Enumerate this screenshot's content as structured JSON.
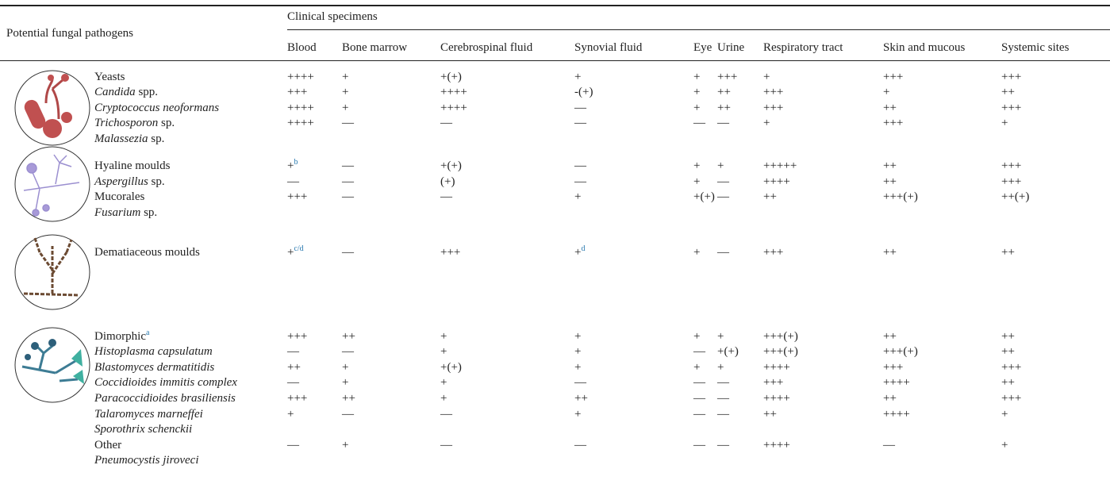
{
  "header": {
    "row_label": "Potential fungal pathogens",
    "span_label": "Clinical specimens"
  },
  "table": {
    "columns": [
      "Blood",
      "Bone marrow",
      "Cerebrospinal fluid",
      "Synovial fluid",
      "Eye",
      "Urine",
      "Respiratory tract",
      "Skin and mucous",
      "Systemic sites"
    ],
    "groups": [
      {
        "rows": [
          {
            "name": "Yeasts",
            "values": [
              "++++",
              "+",
              "+(+)",
              "+",
              "+",
              "+++",
              "+",
              "+++",
              "+++"
            ]
          },
          {
            "name": "Candida",
            "suffix": "spp.",
            "italic": true,
            "values": [
              "+++",
              "+",
              "++++",
              "-(+)",
              "+",
              "++",
              "+++",
              "+",
              "++"
            ]
          },
          {
            "name": "Cryptococcus neoformans",
            "italic": true,
            "values": [
              "++++",
              "+",
              "++++",
              "—",
              "+",
              "++",
              "+++",
              "++",
              "+++"
            ]
          },
          {
            "name": "Trichosporon",
            "suffix": "sp.",
            "italic": true,
            "values": [
              "++++",
              "—",
              "—",
              "—",
              "—",
              "—",
              "+",
              "+++",
              "+"
            ]
          },
          {
            "name": "Malassezia",
            "suffix": "sp.",
            "italic": true
          }
        ]
      },
      {
        "rows": [
          {
            "name": "Hyaline moulds",
            "values": [
              {
                "text": "+",
                "sup": "b"
              },
              "—",
              "+(+)",
              "—",
              "+",
              "+",
              "+++++",
              "++",
              "+++"
            ]
          },
          {
            "name": "Aspergillus",
            "suffix": "sp.",
            "italic": true,
            "values": [
              "—",
              "—",
              "(+)",
              "—",
              "+",
              "—",
              "++++",
              "++",
              "+++"
            ]
          },
          {
            "name": "Mucorales",
            "values": [
              "+++",
              "—",
              "—",
              "+",
              "+(+)",
              "—",
              "++",
              "+++(+)",
              "++(+)"
            ]
          },
          {
            "name": "Fusarium",
            "suffix": "sp.",
            "italic": true
          }
        ]
      },
      {
        "rows": [
          {
            "name": "Dematiaceous moulds",
            "values": [
              {
                "text": "+",
                "sup": "c/d"
              },
              "—",
              "+++",
              {
                "text": "+",
                "sup": "d"
              },
              "+",
              "—",
              "+++",
              "++",
              "++"
            ]
          }
        ]
      },
      {
        "rows": [
          {
            "name": "Dimorphic",
            "sup": "a",
            "values": [
              "+++",
              "++",
              "+",
              "+",
              "+",
              "+",
              "+++(+)",
              "++",
              "++"
            ]
          },
          {
            "name": "Histoplasma capsulatum",
            "italic": true,
            "values": [
              "—",
              "—",
              "+",
              "+",
              "—",
              "+(+)",
              "+++(+)",
              "+++(+)",
              "++"
            ]
          },
          {
            "name": "Blastomyces dermatitidis",
            "italic": true,
            "values": [
              "++",
              "+",
              "+(+)",
              "+",
              "+",
              "+",
              "++++",
              "+++",
              "+++"
            ]
          },
          {
            "name": "Coccidioides immitis complex",
            "italic": true,
            "values": [
              "—",
              "+",
              "+",
              "—",
              "—",
              "—",
              "+++",
              "++++",
              "++"
            ]
          },
          {
            "name": "Paracoccidioides brasiliensis",
            "italic": true,
            "values": [
              "+++",
              "++",
              "+",
              "++",
              "—",
              "—",
              "++++",
              "++",
              "+++"
            ]
          },
          {
            "name": "Talaromyces marneffei",
            "italic": true,
            "values": [
              "+",
              "—",
              "—",
              "+",
              "—",
              "—",
              "++",
              "++++",
              "+"
            ]
          },
          {
            "name": "Sporothrix schenckii",
            "italic": true
          },
          {
            "name": "Other",
            "values": [
              "—",
              "+",
              "—",
              "—",
              "—",
              "—",
              "++++",
              "—",
              "+"
            ]
          },
          {
            "name": "Pneumocystis jiroveci",
            "italic": true
          }
        ]
      }
    ]
  }
}
